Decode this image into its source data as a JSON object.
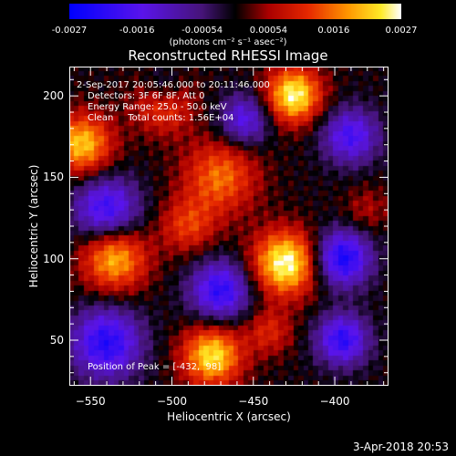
{
  "colorbar": {
    "ticks": [
      "-0.0027",
      "-0.0016",
      "-0.00054",
      "0.00054",
      "0.0016",
      "0.0027"
    ],
    "tick_values": [
      -0.0027,
      -0.0016,
      -0.00054,
      0.00054,
      0.0016,
      0.0027
    ],
    "units_text": "(photons cm⁻² s⁻¹ asec⁻²)",
    "range": [
      -0.0027,
      0.0027
    ]
  },
  "chart_data": {
    "type": "heatmap",
    "title": "Reconstructed RHESSI Image",
    "xlabel": "Heliocentric X (arcsec)",
    "ylabel": "Heliocentric Y (arcsec)",
    "xlim": [
      -563,
      -367
    ],
    "ylim": [
      22,
      218
    ],
    "xticks": [
      -550,
      -500,
      -450,
      -400
    ],
    "yticks": [
      50,
      100,
      150,
      200
    ],
    "xtick_labels": [
      "−550",
      "−500",
      "−450",
      "−400"
    ],
    "ytick_labels": [
      "50",
      "100",
      "150",
      "200"
    ],
    "colormap": "rhessi-blue-red-yellow",
    "sources": [
      {
        "x": -430,
        "y": 97,
        "amplitude": 0.0027,
        "sigma": 14
      },
      {
        "x": -475,
        "y": 40,
        "amplitude": 0.0024,
        "sigma": 13
      },
      {
        "x": -425,
        "y": 200,
        "amplitude": 0.0026,
        "sigma": 12
      },
      {
        "x": -555,
        "y": 170,
        "amplitude": 0.0022,
        "sigma": 13
      },
      {
        "x": -535,
        "y": 100,
        "amplitude": 0.0021,
        "sigma": 14
      },
      {
        "x": -505,
        "y": 195,
        "amplitude": 0.0014,
        "sigma": 13
      },
      {
        "x": -470,
        "y": 150,
        "amplitude": 0.0016,
        "sigma": 16
      },
      {
        "x": -490,
        "y": 120,
        "amplitude": 0.0012,
        "sigma": 12
      },
      {
        "x": -440,
        "y": 55,
        "amplitude": 0.001,
        "sigma": 10
      },
      {
        "x": -380,
        "y": 130,
        "amplitude": 0.0006,
        "sigma": 10
      },
      {
        "x": -540,
        "y": 130,
        "amplitude": -0.002,
        "sigma": 14
      },
      {
        "x": -540,
        "y": 48,
        "amplitude": -0.0022,
        "sigma": 15
      },
      {
        "x": -470,
        "y": 80,
        "amplitude": -0.0021,
        "sigma": 13
      },
      {
        "x": -395,
        "y": 100,
        "amplitude": -0.0024,
        "sigma": 12
      },
      {
        "x": -395,
        "y": 50,
        "amplitude": -0.0021,
        "sigma": 11
      },
      {
        "x": -390,
        "y": 175,
        "amplitude": -0.0018,
        "sigma": 12
      },
      {
        "x": -455,
        "y": 185,
        "amplitude": -0.0016,
        "sigma": 11
      },
      {
        "x": -505,
        "y": 205,
        "amplitude": -0.001,
        "sigma": 9
      }
    ]
  },
  "annotations": {
    "time": "2-Sep-2017 20:05:46.000 to 20:11:46.000",
    "detectors": "Detectors: 3F 6F 8F, Att 0",
    "energy": "Energy Range: 25.0 - 50.0 keV",
    "method": "Clean     Total counts: 1.56E+04",
    "peak": "Position of Peak = [-432,  98]"
  },
  "footer": {
    "date": "3-Apr-2018 20:53"
  }
}
